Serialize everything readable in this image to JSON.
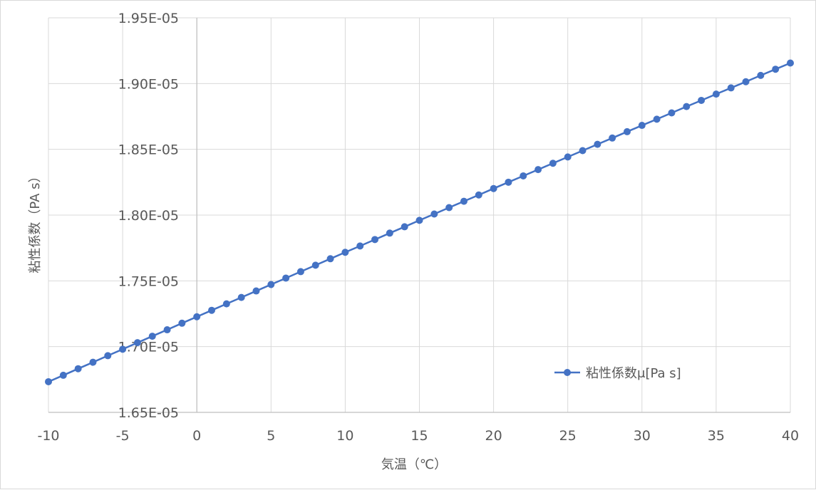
{
  "chart_data": {
    "type": "line",
    "title": "",
    "xlabel": "気温（℃）",
    "ylabel": "粘性係数（PA s）",
    "xlim": [
      -10,
      40
    ],
    "ylim": [
      1.65e-05,
      1.95e-05
    ],
    "x_ticks": [
      "-10",
      "-5",
      "0",
      "5",
      "10",
      "15",
      "20",
      "25",
      "30",
      "35",
      "40"
    ],
    "y_ticks": [
      "1.65E-05",
      "1.70E-05",
      "1.75E-05",
      "1.80E-05",
      "1.85E-05",
      "1.90E-05",
      "1.95E-05"
    ],
    "grid": true,
    "legend_position": "bottom-right",
    "color": "#4472c4",
    "series": [
      {
        "name": "粘性係数μ[Pa s]",
        "x": [
          -10,
          -9,
          -8,
          -7,
          -6,
          -5,
          -4,
          -3,
          -2,
          -1,
          0,
          1,
          2,
          3,
          4,
          5,
          6,
          7,
          8,
          9,
          10,
          11,
          12,
          13,
          14,
          15,
          16,
          17,
          18,
          19,
          20,
          21,
          22,
          23,
          24,
          25,
          26,
          27,
          28,
          29,
          30,
          31,
          32,
          33,
          34,
          35,
          36,
          37,
          38,
          39,
          40
        ],
        "y": [
          1.6733e-05,
          1.6782e-05,
          1.6832e-05,
          1.6881e-05,
          1.6931e-05,
          1.698e-05,
          1.703e-05,
          1.7079e-05,
          1.7128e-05,
          1.7178e-05,
          1.7227e-05,
          1.7276e-05,
          1.7325e-05,
          1.7374e-05,
          1.7423e-05,
          1.7472e-05,
          1.7521e-05,
          1.757e-05,
          1.7619e-05,
          1.7668e-05,
          1.7717e-05,
          1.7765e-05,
          1.7814e-05,
          1.7863e-05,
          1.7911e-05,
          1.796e-05,
          1.8008e-05,
          1.8057e-05,
          1.8105e-05,
          1.8153e-05,
          1.8202e-05,
          1.825e-05,
          1.8298e-05,
          1.8346e-05,
          1.8394e-05,
          1.8442e-05,
          1.849e-05,
          1.8538e-05,
          1.8586e-05,
          1.8634e-05,
          1.8682e-05,
          1.8729e-05,
          1.8777e-05,
          1.8825e-05,
          1.8872e-05,
          1.892e-05,
          1.8967e-05,
          1.9014e-05,
          1.9062e-05,
          1.9109e-05,
          1.9156e-05
        ]
      }
    ]
  }
}
